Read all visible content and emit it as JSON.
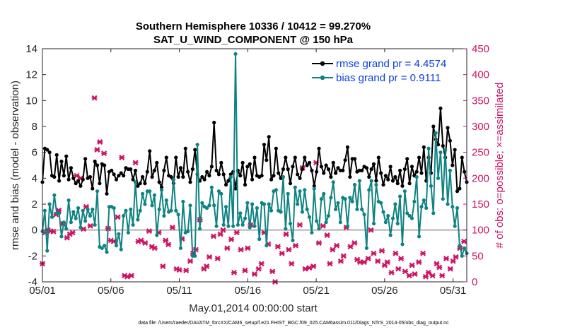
{
  "chart_data": {
    "type": "line",
    "title": "Southern Hemisphere 10336 / 10412 = 99.270%",
    "subtitle": "SAT_U_WIND_COMPONENT @ 150 hPa",
    "xlabel": "May.01,2014 00:00:00 start",
    "ylabel": "rmse and bias (model - observation)",
    "y2label": "# of obs: o=possible; ×=assimilated",
    "footnote": "data file: /Users/raeder/DAI/ATM_forcXX/CAM6_setup/f.e21.FHIST_BGC.f09_025.CAM6assim.011/Diags_NTrS_2014-05/obs_diag_output.nc",
    "xlim": [
      1,
      32
    ],
    "ylim": [
      -4,
      14
    ],
    "y2lim": [
      0,
      450
    ],
    "x_ticks": [
      1,
      6,
      11,
      16,
      21,
      26,
      31
    ],
    "x_tick_labels": [
      "05/01",
      "05/06",
      "05/11",
      "05/16",
      "05/21",
      "05/26",
      "05/31"
    ],
    "y_ticks": [
      -4,
      -2,
      0,
      2,
      4,
      6,
      8,
      10,
      12,
      14
    ],
    "y2_ticks": [
      0,
      50,
      100,
      150,
      200,
      250,
      300,
      350,
      400,
      450
    ],
    "legend_position": "top-right",
    "colors": {
      "rmse": "#000000",
      "bias": "#0f8282",
      "obs": "#cc1463",
      "zero_line": "#b3b3b3"
    },
    "series": [
      {
        "name": "rmse grand pr = 4.4574",
        "values": [
          3.7,
          6.3,
          6.2,
          6.0,
          4.2,
          4.1,
          5.8,
          3.8,
          5.3,
          4.2,
          5.7,
          3.9,
          4.8,
          4.0,
          3.6,
          3.8,
          3.4,
          3.9,
          5.5,
          4.0,
          4.1,
          3.2,
          5.3,
          5.0,
          3.6,
          5.1,
          5.0,
          2.8,
          4.5,
          4.6,
          4.3,
          3.9,
          4.2,
          4.4,
          4.2,
          4.8,
          4.7,
          4.7,
          3.9,
          4.6,
          3.4,
          3.6,
          4.1,
          3.6,
          4.5,
          6.1,
          4.1,
          4.6,
          5.2,
          3.7,
          3.3,
          4.6,
          5.6,
          4.2,
          4.1,
          3.6,
          5.6,
          4.1,
          4.8,
          4.1,
          6.3,
          4.5,
          3.7,
          4.7,
          6.2,
          4.3,
          3.8,
          4.1,
          3.9,
          4.5,
          4.2,
          4.9,
          8.3,
          4.6,
          4.3,
          5.2,
          4.3,
          3.5,
          3.8,
          4.3,
          4.5,
          3.2,
          4.6,
          4.2,
          5.2,
          3.5,
          4.9,
          5.1,
          3.9,
          5.6,
          4.2,
          4.1,
          4.2,
          6.6,
          5.4,
          7.2,
          3.9,
          4.2,
          6.3,
          4.4,
          4.0,
          4.7,
          5.6,
          4.7,
          3.6,
          4.9,
          5.6,
          4.3,
          4.0,
          4.7,
          5.6,
          5.0,
          5.2,
          4.6,
          3.4,
          4.5,
          6.3,
          4.9,
          4.4,
          5.0,
          4.7,
          4.1,
          5.2,
          4.4,
          4.8,
          4.6,
          4.6,
          5.4,
          6.4,
          4.1,
          5.5,
          5.5,
          4.5,
          4.6,
          4.6,
          4.9,
          4.8,
          4.1,
          4.7,
          5.1,
          3.8,
          5.6,
          4.4,
          3.5,
          4.2,
          3.9,
          4.9,
          3.8,
          4.1,
          3.6,
          4.6,
          3.4,
          4.7,
          5.5,
          3.6,
          4.9,
          4.2,
          4.5,
          5.6,
          4.4,
          6.4,
          3.8,
          5.6,
          4.4,
          8.0,
          7.0,
          6.6,
          9.4,
          6.5,
          5.6,
          7.9,
          6.9,
          5.0,
          6.2,
          3.0,
          3.2,
          5.6,
          4.5,
          3.7
        ],
        "marker": "circle"
      },
      {
        "name": "bias grand pr = 0.9111",
        "values": [
          -0.1,
          1.5,
          -1.6,
          2.0,
          1.0,
          2.7,
          1.3,
          1.3,
          -0.5,
          0.6,
          0.1,
          2.3,
          0.6,
          1.4,
          0.9,
          1.7,
          0.2,
          1.5,
          0.7,
          1.6,
          1.1,
          1.6,
          0.4,
          3.0,
          -1.3,
          -1.4,
          -1.2,
          -1.7,
          1.8,
          1.8,
          1.7,
          -1.2,
          -0.3,
          -1.5,
          1.1,
          1.5,
          -0.2,
          1.6,
          0.4,
          3.7,
          0.8,
          1.5,
          2.8,
          2.0,
          3.0,
          3.0,
          1.9,
          2.7,
          -0.4,
          1.6,
          3.1,
          1.1,
          2.3,
          1.4,
          1.5,
          3.9,
          1.5,
          1.2,
          -1.4,
          2.2,
          -0.2,
          -0.1,
          1.9,
          -2.0,
          -2.0,
          6.6,
          0.1,
          2.1,
          1.8,
          1.7,
          1.9,
          3.3,
          1.9,
          0.3,
          3.0,
          2.8,
          0.4,
          1.8,
          0.3,
          4.1,
          0.3,
          13.6,
          0.4,
          1.3,
          0.4,
          0.9,
          2.1,
          0.2,
          2.0,
          0.3,
          1.7,
          -0.7,
          2.1,
          2.0,
          -1.2,
          2.0,
          1.5,
          3.0,
          3.1,
          1.5,
          1.4,
          4.1,
          0.1,
          2.8,
          0.5,
          -0.8,
          3.3,
          2.0,
          3.0,
          1.4,
          3.1,
          1.6,
          1.0,
          -0.2,
          3.2,
          0.7,
          0.1,
          2.4,
          2.8,
          0.6,
          1.1,
          2.5,
          3.7,
          1.6,
          2.1,
          0.6,
          2.5,
          2.4,
          0.3,
          2.5,
          2.2,
          3.5,
          1.6,
          3.8,
          1.6,
          1.2,
          -1.4,
          3.1,
          3.8,
          0.5,
          3.5,
          2.2,
          2.1,
          1.4,
          0.6,
          1.1,
          -0.4,
          0.9,
          2.0,
          0.5,
          2.6,
          -1.1,
          3.0,
          1.3,
          1.1,
          0.9,
          2.2,
          4.1,
          -0.5,
          1.8,
          2.3,
          1.7,
          6.3,
          3.4,
          1.3,
          7.5,
          4.0,
          6.0,
          2.4,
          6.2,
          2.0,
          4.6,
          1.8,
          0.3,
          1.7,
          -1.2,
          -2.0,
          -1.4,
          -1.8
        ],
        "marker": "circle"
      }
    ],
    "obs_scatter": {
      "name": "# of obs (assimilated)",
      "marker": "x",
      "x": [
        1.0,
        1.2,
        1.4,
        1.6,
        1.8,
        2.0,
        2.2,
        2.5,
        2.8,
        3.0,
        3.2,
        3.5,
        3.8,
        4.0,
        4.2,
        4.5,
        4.8,
        5.0,
        5.2,
        5.5,
        5.8,
        6.0,
        6.2,
        6.5,
        6.8,
        7.0,
        7.2,
        7.5,
        7.8,
        8.0,
        8.2,
        8.5,
        8.8,
        9.0,
        9.2,
        9.5,
        9.8,
        10.0,
        10.2,
        10.5,
        10.8,
        11.0,
        11.2,
        11.5,
        11.8,
        12.0,
        12.2,
        12.5,
        12.8,
        13.0,
        13.2,
        13.5,
        13.8,
        14.0,
        14.2,
        14.5,
        14.8,
        15.0,
        15.2,
        15.5,
        15.8,
        16.0,
        16.2,
        16.5,
        16.8,
        17.0,
        17.2,
        17.5,
        17.8,
        18.0,
        18.2,
        18.5,
        18.8,
        19.0,
        19.2,
        19.5,
        19.8,
        20.0,
        20.2,
        20.5,
        20.8,
        21.0,
        21.2,
        21.5,
        21.8,
        22.0,
        22.2,
        22.5,
        22.8,
        23.0,
        23.2,
        23.5,
        23.8,
        24.0,
        24.2,
        24.5,
        24.8,
        25.0,
        25.2,
        25.5,
        25.8,
        26.0,
        26.2,
        26.5,
        26.8,
        27.0,
        27.2,
        27.5,
        27.8,
        28.0,
        28.2,
        28.5,
        28.8,
        29.0,
        29.2,
        29.5,
        29.8,
        30.0,
        30.2,
        30.5,
        30.8,
        31.0,
        31.2,
        31.5,
        31.8
      ],
      "y": [
        35,
        95,
        100,
        98,
        97,
        130,
        138,
        112,
        85,
        92,
        95,
        205,
        200,
        102,
        145,
        108,
        355,
        255,
        270,
        248,
        103,
        80,
        78,
        125,
        240,
        12,
        10,
        12,
        230,
        78,
        80,
        75,
        98,
        68,
        65,
        95,
        30,
        80,
        72,
        105,
        25,
        23,
        83,
        22,
        40,
        55,
        62,
        120,
        25,
        30,
        48,
        88,
        45,
        92,
        100,
        65,
        82,
        18,
        95,
        62,
        22,
        65,
        110,
        15,
        25,
        35,
        95,
        73,
        20,
        0,
        68,
        55,
        92,
        62,
        35,
        70,
        110,
        220,
        25,
        27,
        30,
        230,
        75,
        108,
        90,
        35,
        62,
        70,
        40,
        50,
        105,
        68,
        75,
        43,
        38,
        38,
        45,
        100,
        55,
        40,
        60,
        32,
        38,
        18,
        55,
        25,
        45,
        20,
        12,
        32,
        15,
        38,
        55,
        10,
        18,
        12,
        35,
        28,
        12,
        45,
        25,
        40,
        48,
        65,
        78
      ]
    }
  }
}
